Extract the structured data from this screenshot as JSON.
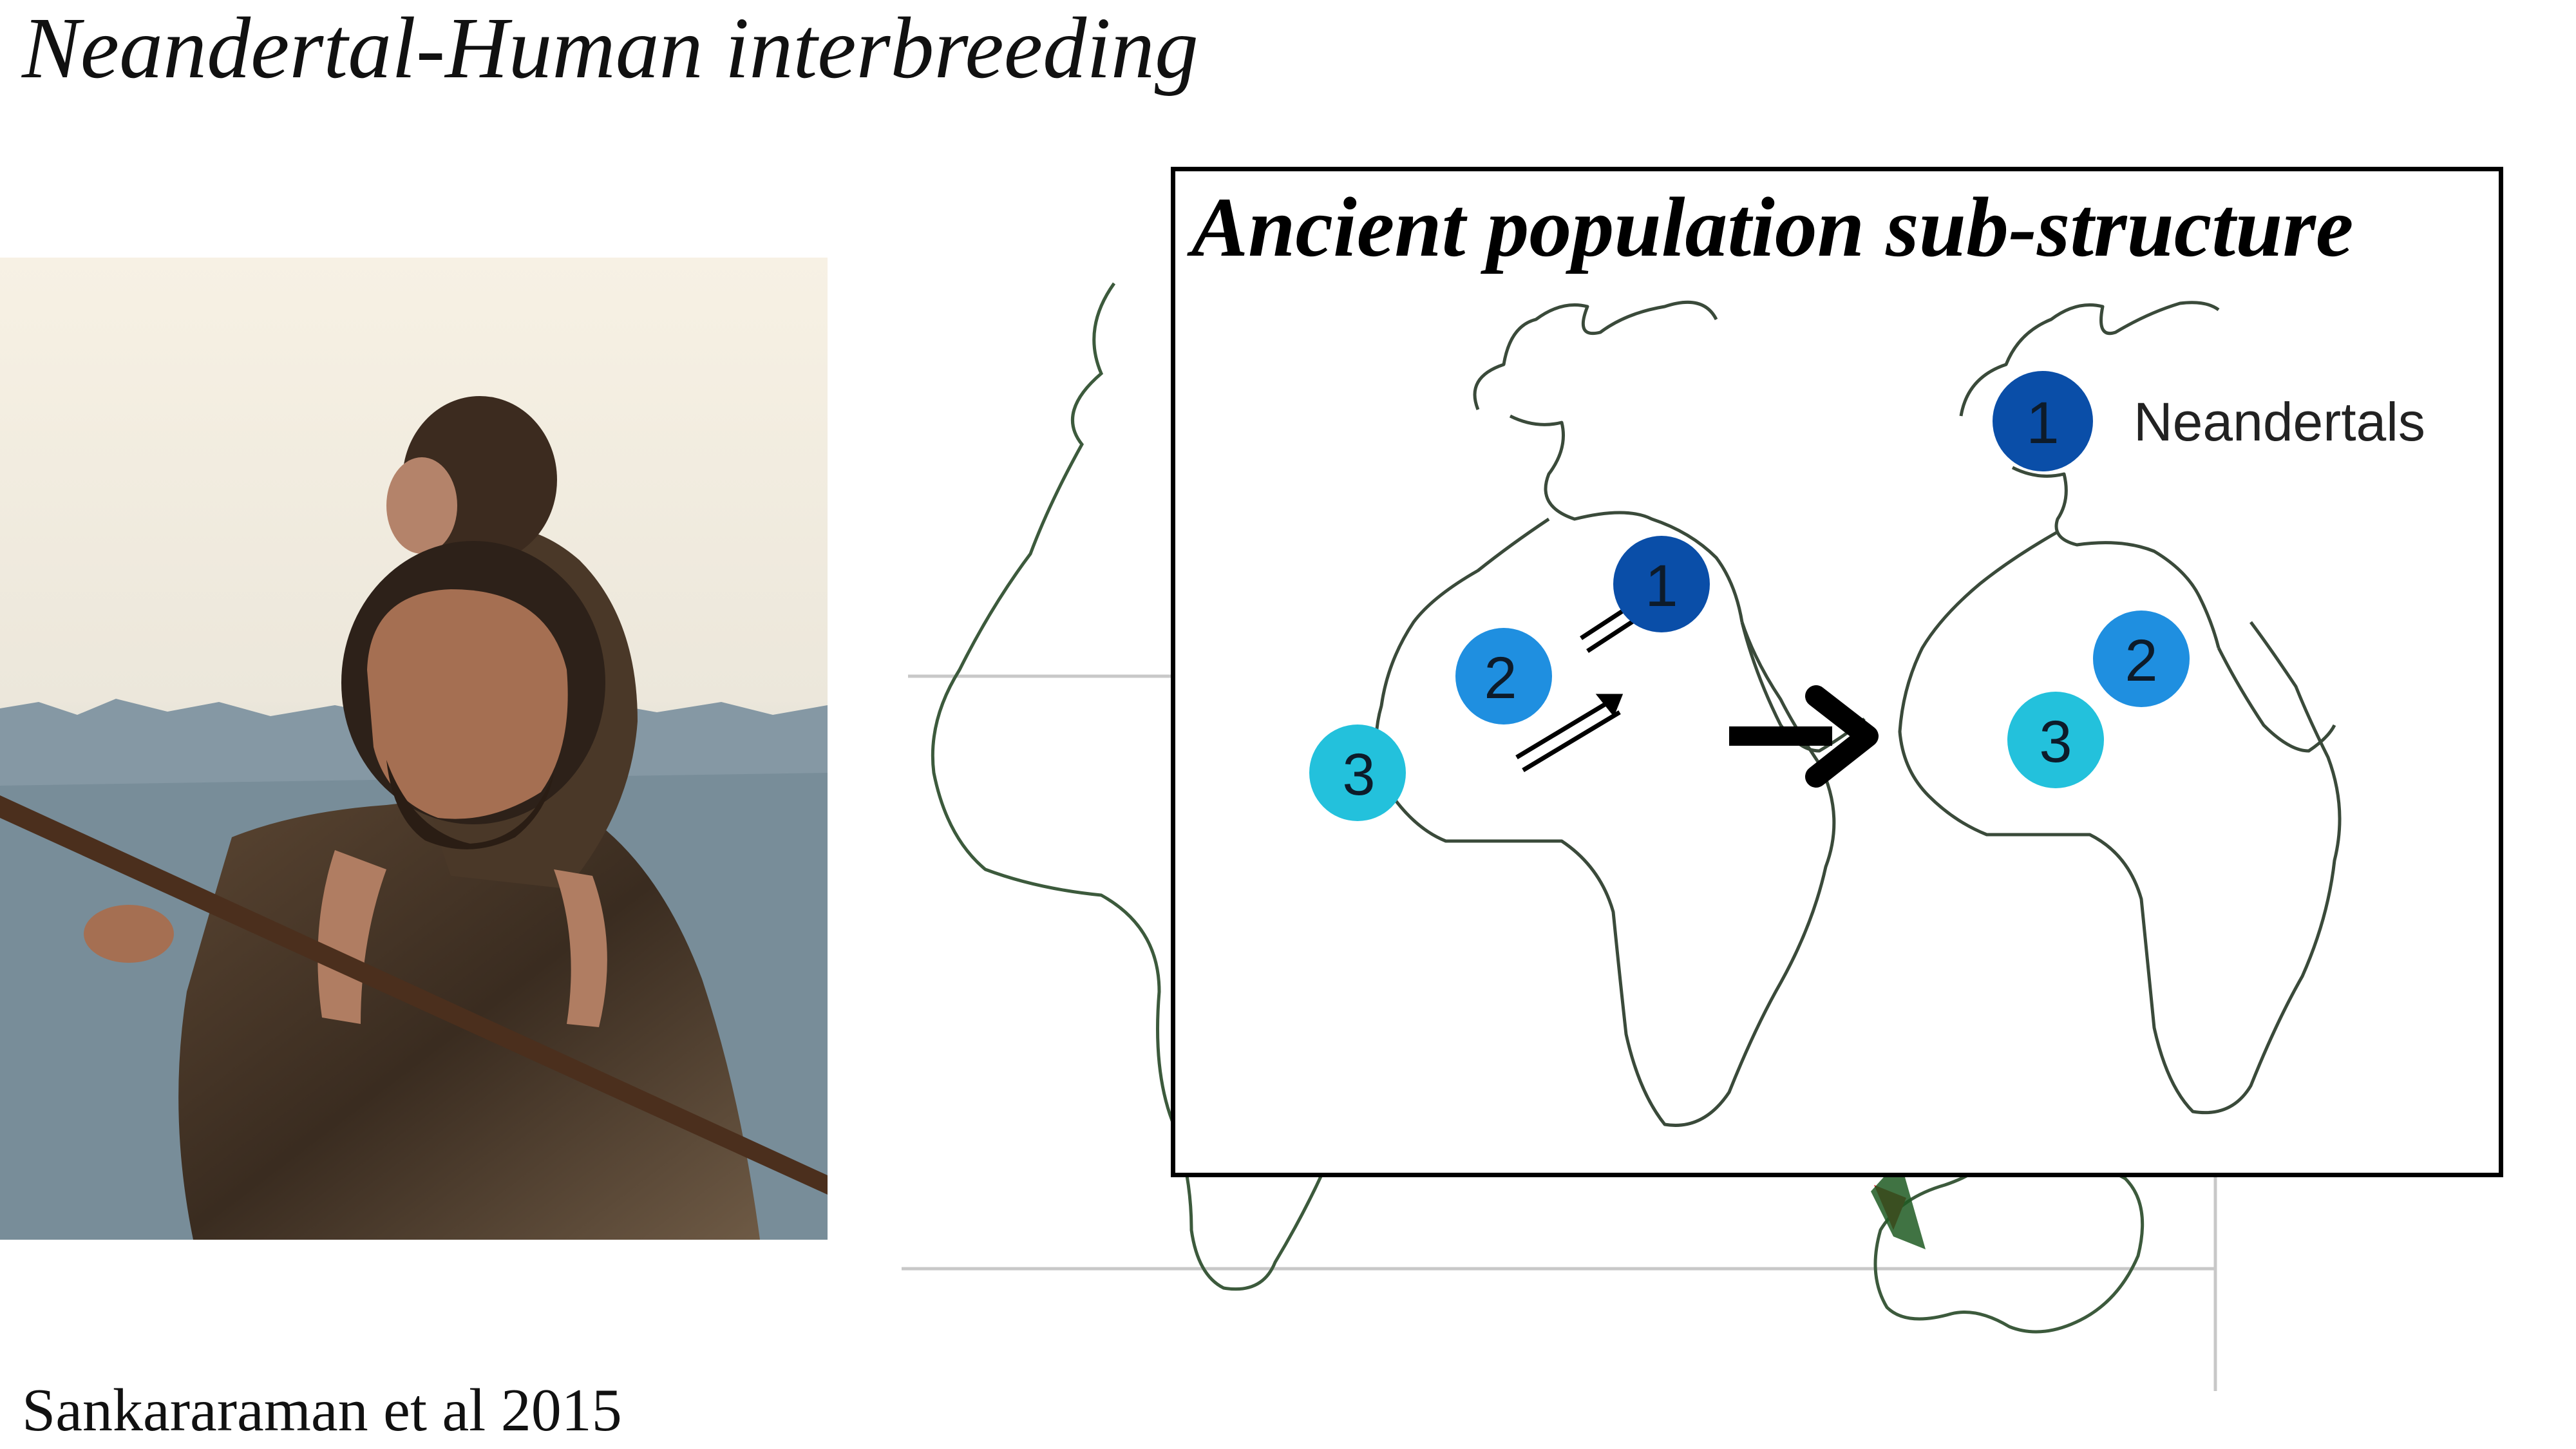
{
  "slide": {
    "title": "Neandertal-Human interbreeding",
    "citation": "Sankararaman et al 2015"
  },
  "inset": {
    "title": "Ancient population sub-structure",
    "left_map": {
      "populations": [
        "1",
        "2",
        "3"
      ]
    },
    "right_map": {
      "populations": [
        "1",
        "2",
        "3"
      ],
      "label": "Neandertals"
    }
  },
  "colors": {
    "pop1": "#0a4ea8",
    "pop2": "#1f8fe0",
    "pop3": "#23c1dc",
    "map_outline": "#3c5a3c",
    "migration_arrow": "#d4131b"
  },
  "icons": [
    "neandertal-illustration",
    "world-map",
    "arrow-right-icon",
    "bidirectional-arrow-icon",
    "red-arrow-icon"
  ]
}
